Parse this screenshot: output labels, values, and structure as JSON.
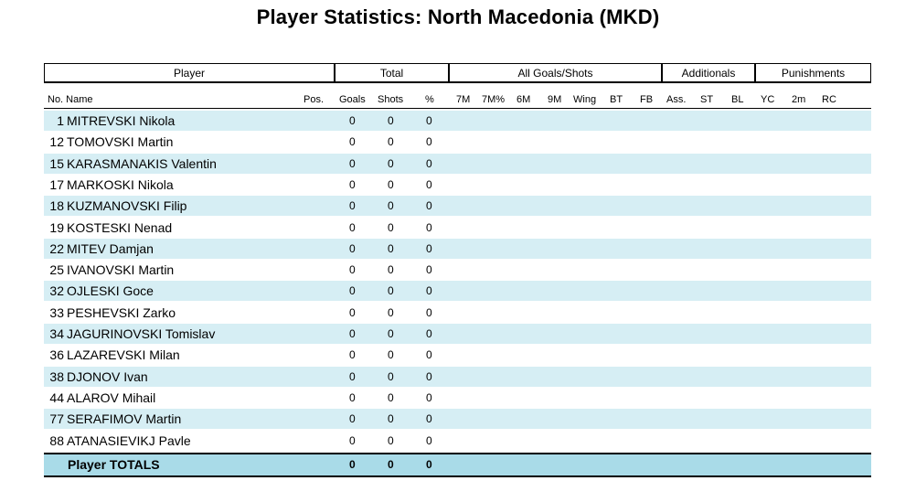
{
  "title": "Player Statistics: North Macedonia (MKD)",
  "groups": {
    "player": "Player",
    "total": "Total",
    "all_goals": "All Goals/Shots",
    "additionals": "Additionals",
    "punishments": "Punishments"
  },
  "columns": {
    "no_name": "No. Name",
    "pos": "Pos.",
    "goals": "Goals",
    "shots": "Shots",
    "pct": "%",
    "m7": "7M",
    "m7pct": "7M%",
    "m6": "6M",
    "m9": "9M",
    "wing": "Wing",
    "bt": "BT",
    "fb": "FB",
    "ass": "Ass.",
    "st": "ST",
    "bl": "BL",
    "yc": "YC",
    "m2": "2m",
    "rc": "RC"
  },
  "players": [
    {
      "no": "1",
      "name": "MITREVSKI Nikola",
      "goals": "0",
      "shots": "0",
      "pct": "0"
    },
    {
      "no": "12",
      "name": "TOMOVSKI Martin",
      "goals": "0",
      "shots": "0",
      "pct": "0"
    },
    {
      "no": "15",
      "name": "KARASMANAKIS Valentin",
      "goals": "0",
      "shots": "0",
      "pct": "0"
    },
    {
      "no": "17",
      "name": "MARKOSKI Nikola",
      "goals": "0",
      "shots": "0",
      "pct": "0"
    },
    {
      "no": "18",
      "name": "KUZMANOVSKI Filip",
      "goals": "0",
      "shots": "0",
      "pct": "0"
    },
    {
      "no": "19",
      "name": "KOSTESKI Nenad",
      "goals": "0",
      "shots": "0",
      "pct": "0"
    },
    {
      "no": "22",
      "name": "MITEV Damjan",
      "goals": "0",
      "shots": "0",
      "pct": "0"
    },
    {
      "no": "25",
      "name": "IVANOVSKI Martin",
      "goals": "0",
      "shots": "0",
      "pct": "0"
    },
    {
      "no": "32",
      "name": "OJLESKI Goce",
      "goals": "0",
      "shots": "0",
      "pct": "0"
    },
    {
      "no": "33",
      "name": "PESHEVSKI Zarko",
      "goals": "0",
      "shots": "0",
      "pct": "0"
    },
    {
      "no": "34",
      "name": "JAGURINOVSKI Tomislav",
      "goals": "0",
      "shots": "0",
      "pct": "0"
    },
    {
      "no": "36",
      "name": "LAZAREVSKI Milan",
      "goals": "0",
      "shots": "0",
      "pct": "0"
    },
    {
      "no": "38",
      "name": "DJONOV Ivan",
      "goals": "0",
      "shots": "0",
      "pct": "0"
    },
    {
      "no": "44",
      "name": "ALAROV Mihail",
      "goals": "0",
      "shots": "0",
      "pct": "0"
    },
    {
      "no": "77",
      "name": "SERAFIMOV Martin",
      "goals": "0",
      "shots": "0",
      "pct": "0"
    },
    {
      "no": "88",
      "name": "ATANASIEVIKJ Pavle",
      "goals": "0",
      "shots": "0",
      "pct": "0"
    }
  ],
  "totals": {
    "label": "Player TOTALS",
    "goals": "0",
    "shots": "0",
    "pct": "0"
  }
}
